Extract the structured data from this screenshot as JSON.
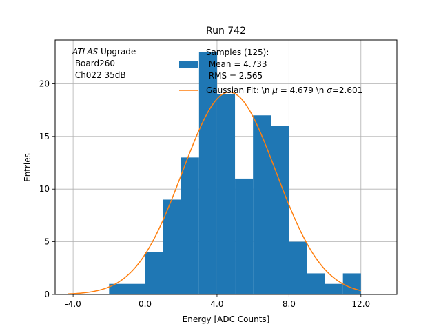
{
  "chart_data": {
    "type": "bar",
    "title": "Run 742",
    "xlabel": "Energy [ADC Counts]",
    "ylabel": "Entries",
    "xlim": [
      -5.0,
      14.0
    ],
    "ylim": [
      0,
      24.15
    ],
    "x_ticks": [
      -4.0,
      0.0,
      4.0,
      8.0,
      12.0
    ],
    "x_tick_labels": [
      "-4.0",
      "0.0",
      "4.0",
      "8.0",
      "12.0"
    ],
    "y_ticks": [
      0,
      5,
      10,
      15,
      20
    ],
    "y_tick_labels": [
      "0",
      "5",
      "10",
      "15",
      "20"
    ],
    "grid": true,
    "bin_edges": [
      -2,
      -1,
      0,
      1,
      2,
      3,
      4,
      5,
      6,
      7,
      8,
      9,
      10,
      11,
      12
    ],
    "counts": [
      1,
      1,
      4,
      9,
      13,
      23,
      19,
      11,
      17,
      16,
      5,
      2,
      1,
      2
    ],
    "bar_color": "#1f77b4",
    "fit_color": "#ff7f0e",
    "gaussian_fit": {
      "mu": 4.679,
      "sigma": 2.601,
      "amplitude": 19.2,
      "x_range": [
        -4.3,
        12.0
      ]
    },
    "annotation": {
      "italic": "ATLAS",
      "line1_rest": " Upgrade",
      "line2": " Board260",
      "line3": " Ch022 35dB"
    },
    "legend": {
      "placement": "top-center",
      "histogram": {
        "line1": "Samples (125):",
        "line2": " Mean = 4.733",
        "line3": " RMS = 2.565"
      },
      "fit": {
        "prefix": "Gaussian Fit: \\n ",
        "mu_sym": "μ",
        "mid": " = 4.679 \\n ",
        "sigma_sym": "σ",
        "suffix": "=2.601"
      }
    }
  }
}
